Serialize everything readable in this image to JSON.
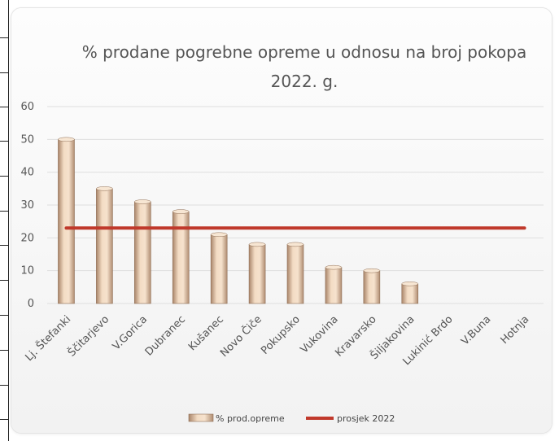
{
  "chart_data": {
    "type": "bar",
    "title": "% prodane pogrebne opreme u odnosu na broj pokopa 2022. g.",
    "categories": [
      "Lj. Štefanki",
      "Ščitarjevo",
      "V.Gorica",
      "Dubranec",
      "Kušanec",
      "Novo Čiče",
      "Pokupsko",
      "Vukovina",
      "Kravarsko",
      "Šiljakovina",
      "Lukinić Brdo",
      "V.Buna",
      "Hotnja"
    ],
    "series": [
      {
        "name": "% prod.opreme",
        "type": "bar",
        "values": [
          50,
          35,
          31,
          28,
          21,
          18,
          18,
          11,
          10,
          6,
          0,
          0,
          0
        ],
        "color": "#e6c7a6"
      },
      {
        "name": "prosjek 2022",
        "type": "line",
        "value": 23,
        "color": "#c0392b"
      }
    ],
    "ylim": [
      0,
      60
    ],
    "yticks": [
      0,
      10,
      20,
      30,
      40,
      50,
      60
    ],
    "grid": true,
    "legend_position": "bottom"
  }
}
